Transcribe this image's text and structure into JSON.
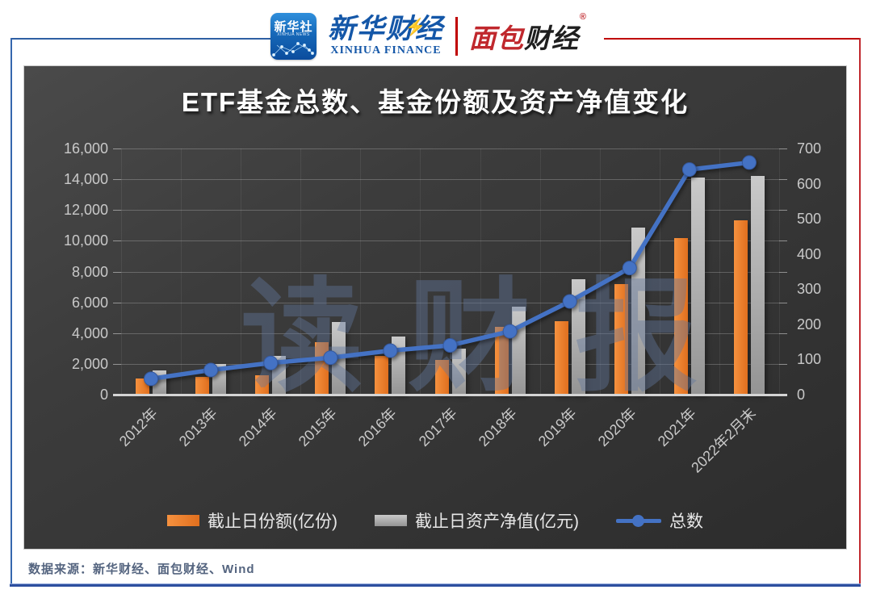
{
  "header": {
    "xinhua_icon": {
      "line1": "新华社",
      "line2": "XINHUA NEWS"
    },
    "xinhua_finance": {
      "cn": "新华财经",
      "en": "XINHUA FINANCE"
    },
    "mianbao": {
      "part1": "面包",
      "part2": "财经",
      "reg": "®"
    }
  },
  "chart_data": {
    "type": "bar+line",
    "title": "ETF基金总数、基金份额及资产净值变化",
    "categories": [
      "2012年",
      "2013年",
      "2014年",
      "2015年",
      "2016年",
      "2017年",
      "2018年",
      "2019年",
      "2020年",
      "2021年",
      "2022年2月末"
    ],
    "series": [
      {
        "name": "截止日份额(亿份)",
        "type": "bar",
        "axis": "left",
        "color": "#ED7D31",
        "values": [
          1050,
          1150,
          1250,
          3400,
          2500,
          2250,
          4400,
          4800,
          7200,
          10200,
          11350
        ]
      },
      {
        "name": "截止日资产净值(亿元)",
        "type": "bar",
        "axis": "left",
        "color": "#A6A6A6",
        "values": [
          1600,
          2000,
          2500,
          4700,
          3800,
          3000,
          5700,
          7500,
          10850,
          14100,
          14200
        ]
      },
      {
        "name": "总数",
        "type": "line",
        "axis": "right",
        "color": "#4472C4",
        "values": [
          45,
          70,
          90,
          105,
          125,
          140,
          180,
          265,
          360,
          640,
          660
        ]
      }
    ],
    "left_axis": {
      "min": 0,
      "max": 16000,
      "step": 2000,
      "tick_labels": [
        "0",
        "2,000",
        "4,000",
        "6,000",
        "8,000",
        "10,000",
        "12,000",
        "14,000",
        "16,000"
      ]
    },
    "right_axis": {
      "min": 0,
      "max": 700,
      "step": 100,
      "tick_labels": [
        "0",
        "100",
        "200",
        "300",
        "400",
        "500",
        "600",
        "700"
      ]
    },
    "watermark": "读财报",
    "legend_position": "bottom",
    "grid": true
  },
  "footer": {
    "source": "数据来源：新华财经、面包财经、Wind"
  }
}
